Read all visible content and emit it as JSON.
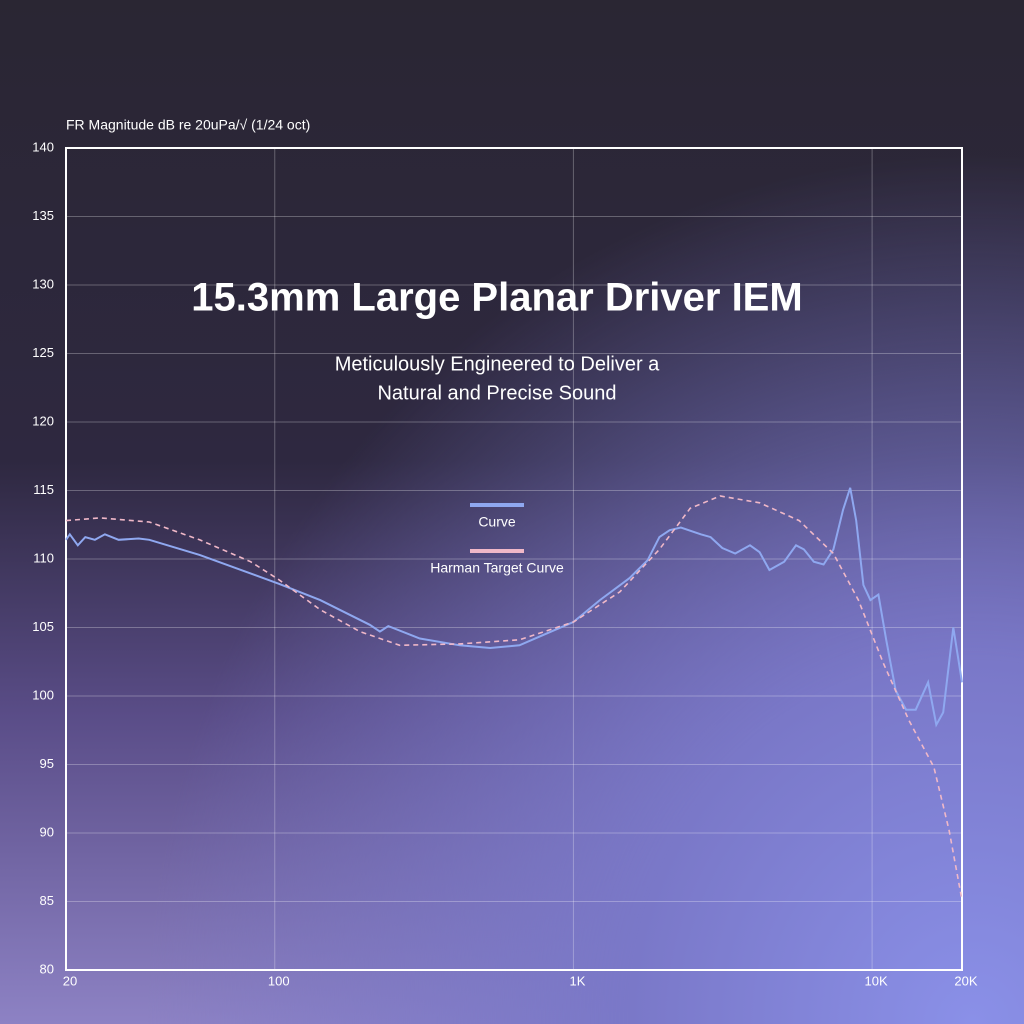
{
  "chart_data": {
    "type": "line",
    "title": "15.3mm Large Planar Driver IEM",
    "subtitle": [
      "Meticulously Engineered to Deliver a",
      "Natural and Precise Sound"
    ],
    "y_label": "FR Magnitude dB re 20uPa/√ (1/24 oct)",
    "xscale": "log",
    "xlim": [
      20,
      20000
    ],
    "xticks": [
      20,
      100,
      {
        "value": 1000,
        "label": "1K"
      },
      {
        "value": 10000,
        "label": "10K"
      },
      {
        "value": 20000,
        "label": "20K"
      }
    ],
    "ylim": [
      80,
      140
    ],
    "yticks": [
      80,
      85,
      90,
      95,
      100,
      105,
      110,
      115,
      120,
      125,
      130,
      135,
      140
    ],
    "grid": true,
    "legend": "center",
    "series": [
      {
        "name": "Curve",
        "color": "#8fa8f0",
        "dash": false,
        "x": [
          20,
          20.6,
          21.9,
          23.2,
          25,
          27,
          30,
          35,
          38,
          56,
          103,
          142,
          208,
          225,
          240,
          306,
          416,
          526,
          660,
          800,
          1000,
          1226,
          1540,
          1770,
          1940,
          2100,
          2290,
          2670,
          2880,
          3150,
          3480,
          3900,
          4200,
          4530,
          5080,
          5560,
          5910,
          6380,
          6880,
          7420,
          8000,
          8450,
          8850,
          9350,
          9870,
          10500,
          11150,
          12000,
          13000,
          14000,
          15400,
          16400,
          17300,
          18700,
          20000
        ],
        "values": [
          111.4,
          111.8,
          111.0,
          111.6,
          111.4,
          111.8,
          111.4,
          111.5,
          111.4,
          110.3,
          108.2,
          107.0,
          105.2,
          104.7,
          105.1,
          104.2,
          103.7,
          103.5,
          103.7,
          104.5,
          105.4,
          107.0,
          108.6,
          109.9,
          111.6,
          112.1,
          112.3,
          111.8,
          111.6,
          110.8,
          110.4,
          111.0,
          110.5,
          109.2,
          109.8,
          111.0,
          110.7,
          109.8,
          109.6,
          110.7,
          113.6,
          115.2,
          112.8,
          108.1,
          107.0,
          107.4,
          104.1,
          100.4,
          99.0,
          99.0,
          101.0,
          97.9,
          98.8,
          105.0,
          101.0
        ]
      },
      {
        "name": "Harman Target Curve",
        "color": "#f0b8c8",
        "dash": true,
        "x": [
          20,
          26,
          38,
          56,
          83,
          103,
          142,
          193,
          262,
          416,
          660,
          1000,
          1430,
          1940,
          2460,
          3100,
          4200,
          5700,
          7420,
          9000,
          10950,
          13300,
          16100,
          18100,
          20000
        ],
        "values": [
          112.8,
          113.0,
          112.7,
          111.4,
          109.8,
          108.5,
          106.3,
          104.7,
          103.7,
          103.8,
          104.1,
          105.4,
          107.6,
          110.7,
          113.7,
          114.6,
          114.1,
          112.8,
          110.4,
          107.0,
          102.3,
          98.2,
          94.8,
          90.2,
          85.1
        ]
      }
    ]
  }
}
